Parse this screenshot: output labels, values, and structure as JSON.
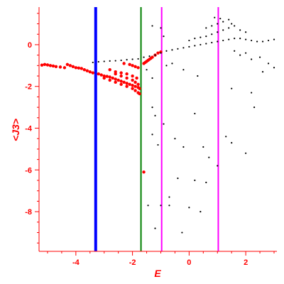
{
  "chart_data": {
    "type": "scatter",
    "xlabel": "E",
    "ylabel": "<J3>",
    "xlim": [
      -5.3,
      3.1
    ],
    "ylim": [
      -9.9,
      1.8
    ],
    "xticks": [
      -4,
      -2,
      0,
      2
    ],
    "yticks": [
      0,
      -2,
      -4,
      -6,
      -8
    ],
    "grid": false,
    "colors": {
      "axis": "#ff0000",
      "red_series": "#ff0000",
      "black_series": "#000000",
      "blue_line": "#0000ff",
      "green_line": "#008000",
      "magenta_line": "#ff00ff"
    },
    "vertical_lines": [
      {
        "x": -3.3,
        "color": "#0000ff",
        "width": 4
      },
      {
        "x": -1.7,
        "color": "#008000",
        "width": 2
      },
      {
        "x": -0.97,
        "color": "#ff00ff",
        "width": 2
      },
      {
        "x": 1.03,
        "color": "#ff00ff",
        "width": 2
      }
    ],
    "series": [
      {
        "color": "#ff0000",
        "marker": "dot",
        "points": [
          [
            -5.2,
            -0.98
          ],
          [
            -5.1,
            -0.95
          ],
          [
            -5.0,
            -0.97
          ],
          [
            -4.9,
            -1.0
          ],
          [
            -4.8,
            -1.02
          ],
          [
            -4.7,
            -1.05
          ],
          [
            -4.55,
            -1.07
          ],
          [
            -4.4,
            -1.1
          ],
          [
            -4.3,
            -0.95
          ],
          [
            -4.2,
            -1.0
          ],
          [
            -4.1,
            -1.05
          ],
          [
            -4.0,
            -1.1
          ],
          [
            -3.9,
            -1.12
          ],
          [
            -3.8,
            -1.14
          ],
          [
            -3.7,
            -1.2
          ],
          [
            -3.6,
            -1.25
          ],
          [
            -3.5,
            -1.3
          ],
          [
            -3.4,
            -1.35
          ],
          [
            -3.2,
            -1.4
          ],
          [
            -3.1,
            -1.45
          ],
          [
            -3.0,
            -1.5
          ],
          [
            -2.9,
            -1.52
          ],
          [
            -2.8,
            -1.55
          ],
          [
            -2.7,
            -1.6
          ],
          [
            -2.6,
            -1.65
          ],
          [
            -2.5,
            -1.7
          ],
          [
            -2.4,
            -1.75
          ],
          [
            -2.3,
            -1.8
          ],
          [
            -2.2,
            -1.85
          ],
          [
            -2.1,
            -1.9
          ],
          [
            -2.0,
            -1.95
          ],
          [
            -1.9,
            -2.0
          ],
          [
            -1.8,
            -2.05
          ],
          [
            -1.75,
            -2.1
          ],
          [
            -3.0,
            -1.6
          ],
          [
            -2.8,
            -1.7
          ],
          [
            -2.6,
            -1.8
          ],
          [
            -2.4,
            -1.9
          ],
          [
            -2.2,
            -2.0
          ],
          [
            -2.0,
            -2.1
          ],
          [
            -1.9,
            -2.2
          ],
          [
            -1.8,
            -2.3
          ],
          [
            -1.75,
            -2.35
          ],
          [
            -2.6,
            -1.4
          ],
          [
            -2.4,
            -1.5
          ],
          [
            -2.2,
            -1.6
          ],
          [
            -2.0,
            -1.7
          ],
          [
            -1.9,
            -1.8
          ],
          [
            -1.8,
            -1.9
          ],
          [
            -2.8,
            -1.2
          ],
          [
            -2.6,
            -1.3
          ],
          [
            -2.4,
            -1.35
          ],
          [
            -2.2,
            -1.4
          ],
          [
            -2.0,
            -1.5
          ],
          [
            -1.85,
            -1.6
          ],
          [
            -2.3,
            -0.9
          ],
          [
            -2.1,
            -0.95
          ],
          [
            -2.0,
            -1.0
          ],
          [
            -1.9,
            -1.05
          ],
          [
            -1.8,
            -1.1
          ],
          [
            -1.6,
            -0.9
          ],
          [
            -1.5,
            -0.8
          ],
          [
            -1.4,
            -0.7
          ],
          [
            -1.3,
            -0.6
          ],
          [
            -1.2,
            -0.5
          ],
          [
            -1.1,
            -0.4
          ],
          [
            -1.0,
            -0.35
          ],
          [
            -1.55,
            -0.85
          ],
          [
            -1.45,
            -0.75
          ],
          [
            -1.35,
            -0.65
          ],
          [
            -1.6,
            -6.1
          ]
        ]
      },
      {
        "color": "#000000",
        "marker": "dot",
        "points": [
          [
            -3.4,
            -0.85
          ],
          [
            -3.2,
            -0.82
          ],
          [
            -3.0,
            -0.8
          ],
          [
            -2.8,
            -0.78
          ],
          [
            -2.6,
            -0.77
          ],
          [
            -2.4,
            -0.75
          ],
          [
            -2.2,
            -0.72
          ],
          [
            -2.0,
            -0.7
          ],
          [
            -1.8,
            -0.68
          ],
          [
            -1.6,
            -0.6
          ],
          [
            -1.4,
            -0.55
          ],
          [
            -1.2,
            -0.5
          ],
          [
            -1.0,
            -0.4
          ],
          [
            -0.8,
            -0.3
          ],
          [
            -0.6,
            -0.25
          ],
          [
            -0.4,
            -0.2
          ],
          [
            -0.2,
            -0.15
          ],
          [
            0.0,
            -0.1
          ],
          [
            0.2,
            -0.05
          ],
          [
            0.4,
            0.0
          ],
          [
            0.6,
            0.05
          ],
          [
            0.8,
            0.1
          ],
          [
            1.0,
            0.15
          ],
          [
            1.2,
            0.2
          ],
          [
            1.4,
            0.25
          ],
          [
            1.6,
            0.3
          ],
          [
            1.8,
            0.3
          ],
          [
            2.0,
            0.25
          ],
          [
            2.2,
            0.2
          ],
          [
            2.4,
            0.15
          ],
          [
            2.6,
            0.15
          ],
          [
            2.8,
            0.2
          ],
          [
            3.0,
            0.25
          ],
          [
            0.0,
            0.2
          ],
          [
            0.2,
            0.3
          ],
          [
            0.4,
            0.35
          ],
          [
            0.6,
            0.4
          ],
          [
            0.8,
            0.5
          ],
          [
            1.0,
            0.6
          ],
          [
            1.2,
            0.7
          ],
          [
            1.4,
            0.8
          ],
          [
            1.6,
            0.9
          ],
          [
            1.8,
            0.7
          ],
          [
            2.0,
            0.6
          ],
          [
            0.6,
            0.8
          ],
          [
            0.8,
            0.9
          ],
          [
            1.0,
            1.0
          ],
          [
            1.2,
            1.1
          ],
          [
            1.4,
            1.2
          ],
          [
            0.9,
            1.3
          ],
          [
            1.1,
            1.25
          ],
          [
            1.5,
            1.0
          ],
          [
            1.6,
            -0.3
          ],
          [
            1.8,
            -0.5
          ],
          [
            2.0,
            -0.4
          ],
          [
            2.2,
            -0.7
          ],
          [
            2.5,
            -0.6
          ],
          [
            2.8,
            -0.9
          ],
          [
            3.0,
            -1.1
          ],
          [
            2.6,
            -1.3
          ],
          [
            -1.3,
            0.9
          ],
          [
            -1.0,
            0.8
          ],
          [
            -0.9,
            0.4
          ],
          [
            -1.5,
            -1.2
          ],
          [
            -1.3,
            -1.6
          ],
          [
            -0.8,
            -1.0
          ],
          [
            -0.6,
            -0.9
          ],
          [
            -0.2,
            -1.2
          ],
          [
            0.3,
            -1.5
          ],
          [
            -1.3,
            -3.0
          ],
          [
            -1.2,
            -3.4
          ],
          [
            -0.9,
            -3.8
          ],
          [
            -1.3,
            -4.3
          ],
          [
            -1.1,
            -4.8
          ],
          [
            -0.5,
            -4.5
          ],
          [
            -0.2,
            -4.9
          ],
          [
            0.2,
            -3.3
          ],
          [
            0.5,
            -4.9
          ],
          [
            0.7,
            -5.4
          ],
          [
            1.0,
            -5.8
          ],
          [
            1.3,
            -4.4
          ],
          [
            1.5,
            -4.7
          ],
          [
            2.0,
            -5.2
          ],
          [
            2.2,
            -2.3
          ],
          [
            1.5,
            -2.1
          ],
          [
            2.3,
            -3.0
          ],
          [
            0.6,
            -6.6
          ],
          [
            0.2,
            -6.5
          ],
          [
            -0.4,
            -6.4
          ],
          [
            -0.7,
            -7.3
          ],
          [
            -1.0,
            -7.7
          ],
          [
            -0.7,
            -7.7
          ],
          [
            -1.45,
            -7.7
          ],
          [
            0.0,
            -7.8
          ],
          [
            0.4,
            -8.0
          ],
          [
            -1.2,
            -8.8
          ],
          [
            -0.25,
            -9.0
          ]
        ]
      }
    ]
  }
}
